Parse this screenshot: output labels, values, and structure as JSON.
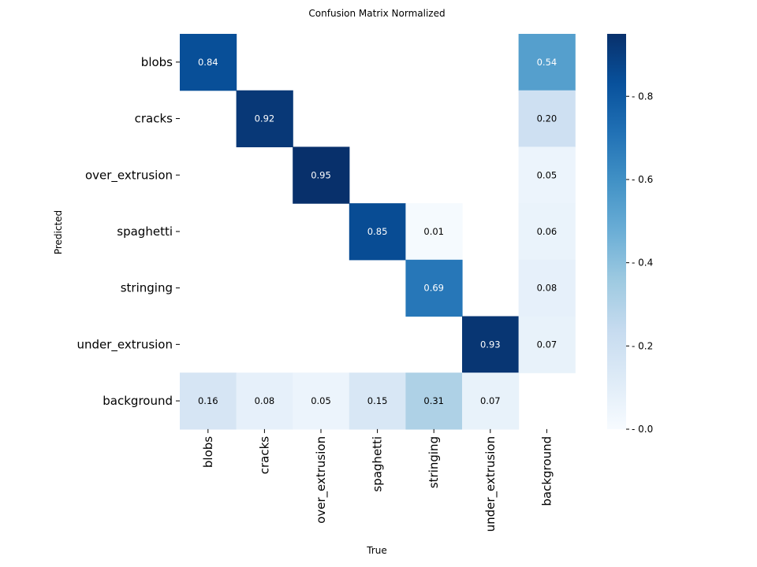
{
  "chart_data": {
    "type": "heatmap",
    "title": "Confusion Matrix Normalized",
    "xlabel": "True",
    "ylabel": "Predicted",
    "x_categories": [
      "blobs",
      "cracks",
      "over_extrusion",
      "spaghetti",
      "stringing",
      "under_extrusion",
      "background"
    ],
    "y_categories": [
      "blobs",
      "cracks",
      "over_extrusion",
      "spaghetti",
      "stringing",
      "under_extrusion",
      "background"
    ],
    "values": [
      [
        0.84,
        null,
        null,
        null,
        null,
        null,
        0.54
      ],
      [
        null,
        0.92,
        null,
        null,
        null,
        null,
        0.2
      ],
      [
        null,
        null,
        0.95,
        null,
        null,
        null,
        0.05
      ],
      [
        null,
        null,
        null,
        0.85,
        0.01,
        null,
        0.06
      ],
      [
        null,
        null,
        null,
        null,
        0.69,
        null,
        0.08
      ],
      [
        null,
        null,
        null,
        null,
        null,
        0.93,
        0.07
      ],
      [
        0.16,
        0.08,
        0.05,
        0.15,
        0.31,
        0.07,
        null
      ]
    ],
    "colormap": "Blues",
    "vmin": 0.0,
    "vmax": 0.95,
    "colorbar_ticks": [
      "0.0",
      "0.2",
      "0.4",
      "0.6",
      "0.8"
    ],
    "colorbar_tick_values": [
      0.0,
      0.2,
      0.4,
      0.6,
      0.8
    ],
    "grid": false
  }
}
